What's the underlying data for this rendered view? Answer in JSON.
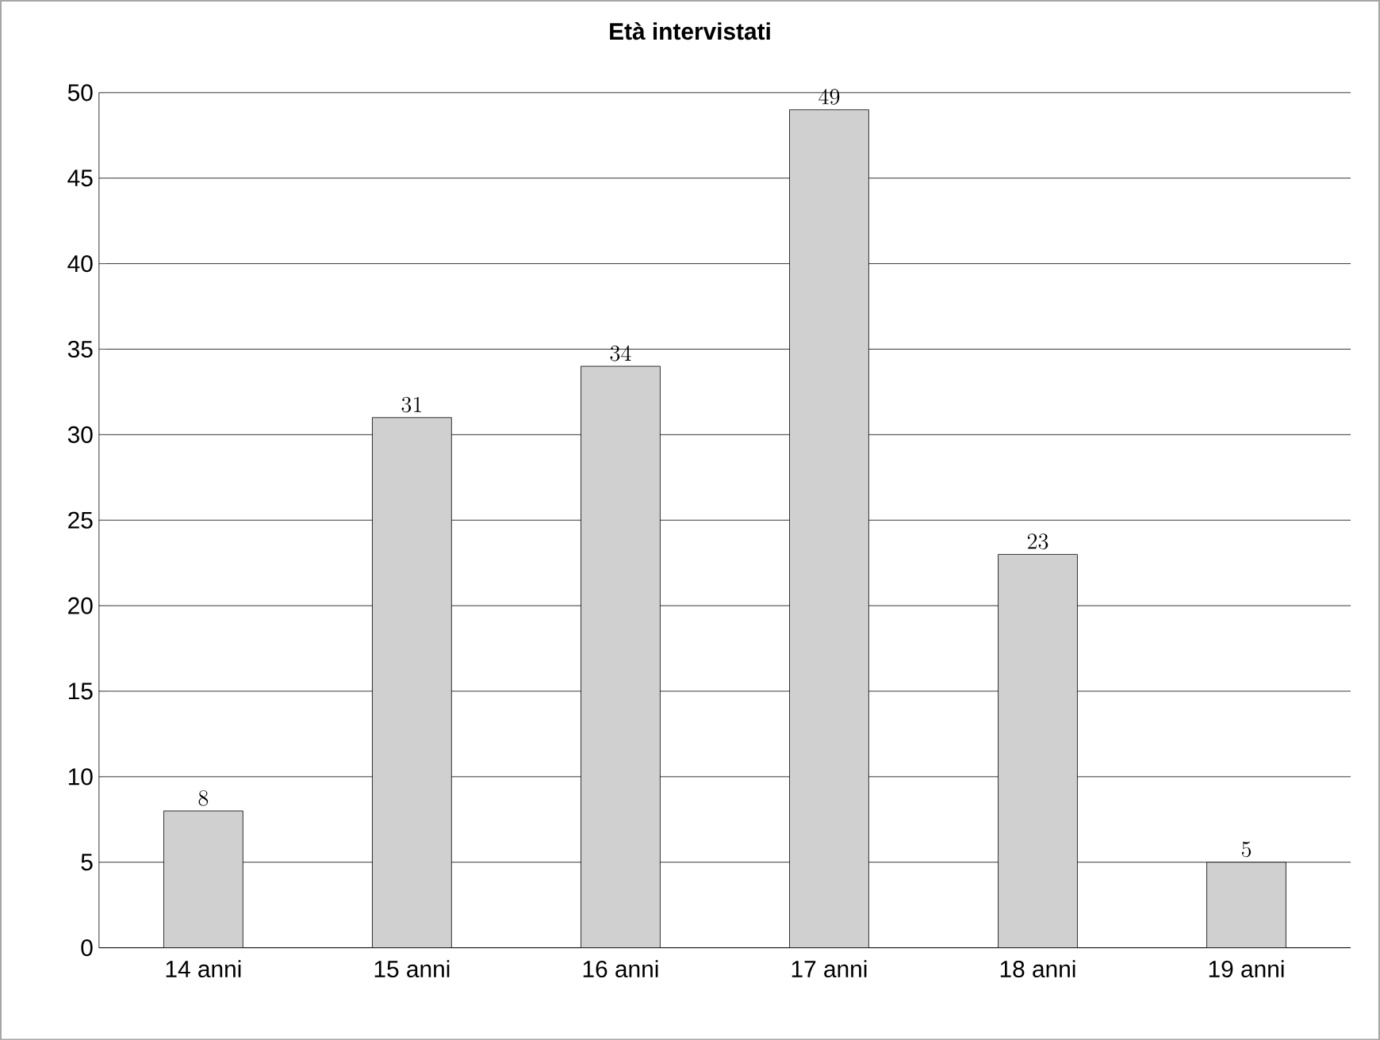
{
  "chart_data": {
    "type": "bar",
    "title": "Età intervistati",
    "categories": [
      "14 anni",
      "15 anni",
      "16 anni",
      "17 anni",
      "18 anni",
      "19 anni"
    ],
    "values": [
      8,
      31,
      34,
      49,
      23,
      5
    ],
    "color": "#d0d0d0",
    "ylim": [
      0,
      50
    ],
    "yticks": [
      0,
      5,
      10,
      15,
      20,
      25,
      30,
      35,
      40,
      45,
      50
    ],
    "grid": "y",
    "data_labels": true
  }
}
